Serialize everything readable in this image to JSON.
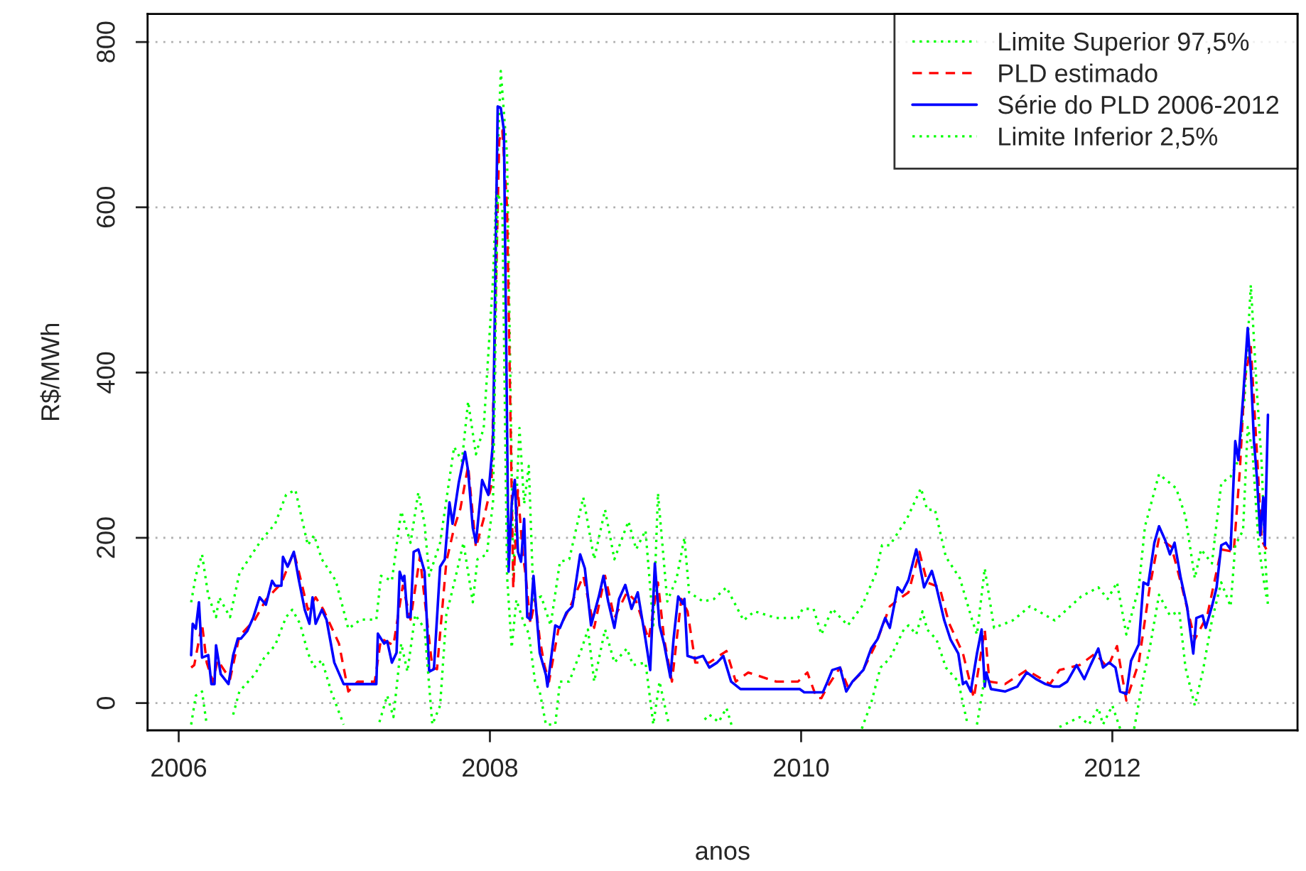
{
  "chart_data": {
    "type": "line",
    "xlabel": "anos",
    "ylabel": "R$/MWh",
    "xlim": [
      2005.8,
      2013.19
    ],
    "ylim": [
      -33,
      834
    ],
    "xticks": [
      2006,
      2008,
      2010,
      2012
    ],
    "yticks": [
      0,
      200,
      400,
      600,
      800
    ],
    "grid": "y",
    "legend": "top right",
    "series": [
      {
        "name": "Limite Superior 97,5%",
        "color": "#00ff00",
        "line_style": "dotted",
        "x": [
          2006.08,
          2006.11,
          2006.15,
          2006.19,
          2006.24,
          2006.26,
          2006.33,
          2006.39,
          2006.53,
          2006.62,
          2006.69,
          2006.75,
          2006.83,
          2006.87,
          2006.92,
          2007.01,
          2007.09,
          2007.17,
          2007.27,
          2007.3,
          2007.37,
          2007.43,
          2007.49,
          2007.54,
          2007.58,
          2007.61,
          2007.68,
          2007.77,
          2007.82,
          2007.86,
          2007.91,
          2007.96,
          2008.02,
          2008.07,
          2008.11,
          2008.15,
          2008.19,
          2008.22,
          2008.25,
          2008.28,
          2008.33,
          2008.39,
          2008.45,
          2008.51,
          2008.6,
          2008.67,
          2008.74,
          2008.8,
          2008.89,
          2008.94,
          2009.0,
          2009.05,
          2009.08,
          2009.14,
          2009.2,
          2009.25,
          2009.28,
          2009.37,
          2009.44,
          2009.52,
          2009.63,
          2009.7,
          2009.84,
          2009.98,
          2010.01,
          2010.08,
          2010.13,
          2010.2,
          2010.3,
          2010.39,
          2010.48,
          2010.52,
          2010.57,
          2010.68,
          2010.77,
          2010.81,
          2010.86,
          2010.93,
          2011.02,
          2011.1,
          2011.13,
          2011.18,
          2011.24,
          2011.36,
          2011.47,
          2011.63,
          2011.73,
          2011.8,
          2011.91,
          2011.97,
          2012.03,
          2012.09,
          2012.17,
          2012.21,
          2012.3,
          2012.41,
          2012.47,
          2012.53,
          2012.57,
          2012.64,
          2012.7,
          2012.76,
          2012.81,
          2012.85,
          2012.89,
          2012.93,
          2012.96,
          2012.98,
          2013.0
        ],
        "values": [
          122,
          154,
          180,
          130,
          104,
          128,
          104,
          157,
          197,
          217,
          252,
          258,
          191,
          203,
          174,
          148,
          90,
          101,
          101,
          154,
          148,
          232,
          194,
          255,
          217,
          154,
          194,
          310,
          293,
          365,
          301,
          333,
          513,
          765,
          664,
          154,
          333,
          241,
          287,
          125,
          129,
          94,
          171,
          174,
          249,
          174,
          234,
          174,
          220,
          186,
          209,
          94,
          254,
          123,
          151,
          200,
          134,
          123,
          126,
          140,
          100,
          111,
          103,
          103,
          114,
          114,
          83,
          114,
          94,
          117,
          157,
          191,
          191,
          223,
          260,
          234,
          234,
          177,
          151,
          100,
          83,
          163,
          91,
          100,
          117,
          100,
          117,
          129,
          140,
          126,
          146,
          83,
          140,
          214,
          277,
          260,
          226,
          151,
          186,
          169,
          266,
          274,
          294,
          369,
          506,
          374,
          289,
          186,
          117
        ]
      },
      {
        "name": "PLD estimado",
        "color": "#ff0000",
        "line_style": "dashed",
        "x": [
          2006.08,
          2006.1,
          2006.15,
          2006.18,
          2006.22,
          2006.25,
          2006.33,
          2006.39,
          2006.49,
          2006.56,
          2006.66,
          2006.74,
          2006.79,
          2006.83,
          2006.88,
          2006.93,
          2007.03,
          2007.09,
          2007.15,
          2007.26,
          2007.3,
          2007.38,
          2007.44,
          2007.49,
          2007.55,
          2007.63,
          2007.66,
          2007.72,
          2007.77,
          2007.81,
          2007.86,
          2007.91,
          2007.96,
          2008.01,
          2008.06,
          2008.08,
          2008.11,
          2008.15,
          2008.18,
          2008.21,
          2008.23,
          2008.26,
          2008.29,
          2008.32,
          2008.35,
          2008.38,
          2008.44,
          2008.51,
          2008.6,
          2008.67,
          2008.74,
          2008.8,
          2008.88,
          2008.94,
          2009.02,
          2009.08,
          2009.12,
          2009.17,
          2009.23,
          2009.27,
          2009.32,
          2009.41,
          2009.52,
          2009.58,
          2009.66,
          2009.84,
          2009.98,
          2010.04,
          2010.1,
          2010.13,
          2010.17,
          2010.25,
          2010.3,
          2010.39,
          2010.48,
          2010.57,
          2010.63,
          2010.69,
          2010.76,
          2010.81,
          2010.89,
          2010.95,
          2011.04,
          2011.11,
          2011.18,
          2011.21,
          2011.31,
          2011.45,
          2011.6,
          2011.66,
          2011.79,
          2011.89,
          2011.97,
          2012.03,
          2012.09,
          2012.17,
          2012.24,
          2012.3,
          2012.38,
          2012.44,
          2012.53,
          2012.61,
          2012.7,
          2012.78,
          2012.82,
          2012.85,
          2012.89,
          2012.93,
          2012.96,
          2012.99
        ],
        "values": [
          43,
          46,
          96,
          49,
          26,
          52,
          29,
          81,
          101,
          125,
          145,
          183,
          145,
          113,
          128,
          113,
          72,
          14,
          26,
          26,
          78,
          70,
          142,
          101,
          177,
          43,
          41,
          171,
          212,
          235,
          287,
          188,
          223,
          264,
          681,
          693,
          600,
          139,
          258,
          183,
          154,
          96,
          125,
          78,
          46,
          26,
          89,
          114,
          154,
          91,
          154,
          103,
          134,
          123,
          77,
          146,
          77,
          26,
          126,
          111,
          49,
          49,
          63,
          26,
          37,
          26,
          26,
          37,
          6,
          6,
          20,
          43,
          20,
          37,
          71,
          117,
          126,
          134,
          183,
          146,
          140,
          97,
          60,
          6,
          89,
          26,
          23,
          40,
          23,
          40,
          46,
          60,
          43,
          69,
          3,
          49,
          140,
          200,
          189,
          146,
          77,
          106,
          186,
          183,
          283,
          391,
          431,
          300,
          197,
          186
        ]
      },
      {
        "name": "Série do PLD 2006-2012",
        "color": "#0000ff",
        "line_style": "solid",
        "x": [
          2006.08,
          2006.09,
          2006.11,
          2006.13,
          2006.15,
          2006.19,
          2006.21,
          2006.23,
          2006.24,
          2006.27,
          2006.32,
          2006.35,
          2006.38,
          2006.4,
          2006.44,
          2006.48,
          2006.52,
          2006.56,
          2006.6,
          2006.62,
          2006.66,
          2006.67,
          2006.7,
          2006.74,
          2006.77,
          2006.81,
          2006.84,
          2006.86,
          2006.88,
          2006.92,
          2006.95,
          2007.0,
          2007.06,
          2007.27,
          2007.28,
          2007.32,
          2007.34,
          2007.37,
          2007.4,
          2007.42,
          2007.44,
          2007.45,
          2007.47,
          2007.49,
          2007.51,
          2007.54,
          2007.58,
          2007.61,
          2007.64,
          2007.68,
          2007.71,
          2007.74,
          2007.76,
          2007.8,
          2007.84,
          2007.86,
          2007.89,
          2007.91,
          2007.95,
          2007.99,
          2008.02,
          2008.05,
          2008.07,
          2008.09,
          2008.12,
          2008.14,
          2008.16,
          2008.18,
          2008.2,
          2008.22,
          2008.24,
          2008.26,
          2008.28,
          2008.32,
          2008.36,
          2008.37,
          2008.42,
          2008.45,
          2008.49,
          2008.53,
          2008.58,
          2008.61,
          2008.65,
          2008.7,
          2008.73,
          2008.76,
          2008.8,
          2008.83,
          2008.87,
          2008.91,
          2008.95,
          2009.0,
          2009.03,
          2009.06,
          2009.09,
          2009.12,
          2009.16,
          2009.18,
          2009.21,
          2009.24,
          2009.25,
          2009.27,
          2009.32,
          2009.37,
          2009.41,
          2009.46,
          2009.5,
          2009.55,
          2009.61,
          2009.99,
          2010.02,
          2010.14,
          2010.17,
          2010.2,
          2010.25,
          2010.29,
          2010.33,
          2010.4,
          2010.45,
          2010.49,
          2010.54,
          2010.57,
          2010.62,
          2010.65,
          2010.69,
          2010.74,
          2010.76,
          2010.79,
          2010.84,
          2010.87,
          2010.92,
          2010.96,
          2011.01,
          2011.04,
          2011.06,
          2011.09,
          2011.13,
          2011.16,
          2011.18,
          2011.19,
          2011.22,
          2011.31,
          2011.39,
          2011.45,
          2011.51,
          2011.57,
          2011.62,
          2011.66,
          2011.71,
          2011.77,
          2011.82,
          2011.86,
          2011.91,
          2011.94,
          2011.98,
          2012.02,
          2012.05,
          2012.09,
          2012.12,
          2012.17,
          2012.2,
          2012.23,
          2012.27,
          2012.3,
          2012.34,
          2012.37,
          2012.4,
          2012.44,
          2012.48,
          2012.52,
          2012.54,
          2012.58,
          2012.6,
          2012.64,
          2012.67,
          2012.7,
          2012.73,
          2012.76,
          2012.79,
          2012.81,
          2012.84,
          2012.87,
          2012.89,
          2012.91,
          2012.93,
          2012.95,
          2012.97,
          2012.98,
          2013.0
        ],
        "values": [
          58,
          96,
          90,
          122,
          55,
          58,
          23,
          23,
          70,
          35,
          23,
          58,
          78,
          78,
          87,
          104,
          128,
          119,
          148,
          142,
          142,
          177,
          165,
          183,
          151,
          113,
          96,
          128,
          96,
          113,
          101,
          49,
          23,
          23,
          84,
          72,
          75,
          49,
          61,
          159,
          148,
          154,
          104,
          104,
          183,
          186,
          159,
          38,
          41,
          165,
          174,
          243,
          217,
          267,
          304,
          281,
          212,
          194,
          270,
          252,
          316,
          722,
          720,
          693,
          159,
          241,
          270,
          183,
          171,
          223,
          104,
          101,
          154,
          61,
          34,
          20,
          94,
          91,
          109,
          117,
          180,
          163,
          94,
          129,
          154,
          123,
          91,
          126,
          143,
          114,
          134,
          77,
          40,
          169,
          94,
          71,
          31,
          77,
          129,
          120,
          126,
          57,
          54,
          57,
          43,
          49,
          57,
          26,
          17,
          17,
          13,
          13,
          26,
          40,
          43,
          14,
          26,
          40,
          66,
          77,
          103,
          91,
          140,
          134,
          149,
          186,
          169,
          140,
          160,
          140,
          100,
          77,
          60,
          23,
          26,
          14,
          60,
          89,
          20,
          37,
          17,
          14,
          20,
          37,
          29,
          23,
          20,
          20,
          26,
          46,
          29,
          46,
          66,
          43,
          49,
          43,
          14,
          11,
          51,
          71,
          146,
          143,
          194,
          214,
          197,
          180,
          194,
          151,
          117,
          60,
          103,
          106,
          91,
          117,
          140,
          191,
          194,
          186,
          317,
          294,
          369,
          454,
          403,
          317,
          271,
          203,
          249,
          191,
          349
        ]
      },
      {
        "name": "Limite Inferior 2,5%",
        "color": "#00ff00",
        "line_style": "dotted",
        "x": [
          2006.08,
          2006.11,
          2006.15,
          2006.18,
          2006.22,
          2006.35,
          2006.39,
          2006.49,
          2006.55,
          2006.62,
          2006.69,
          2006.73,
          2006.78,
          2006.83,
          2006.87,
          2006.92,
          2006.98,
          2007.06,
          2007.15,
          2007.29,
          2007.34,
          2007.38,
          2007.43,
          2007.47,
          2007.52,
          2007.58,
          2007.63,
          2007.68,
          2007.72,
          2007.77,
          2007.83,
          2007.89,
          2007.92,
          2007.98,
          2008.02,
          2008.05,
          2008.08,
          2008.11,
          2008.14,
          2008.17,
          2008.22,
          2008.25,
          2008.29,
          2008.32,
          2008.36,
          2008.42,
          2008.45,
          2008.51,
          2008.59,
          2008.63,
          2008.67,
          2008.74,
          2008.8,
          2008.88,
          2008.92,
          2009.0,
          2009.05,
          2009.09,
          2009.15,
          2009.25,
          2009.38,
          2009.41,
          2009.47,
          2009.52,
          2009.56,
          2009.8,
          2009.99,
          2010.1,
          2010.25,
          2010.32,
          2010.39,
          2010.45,
          2010.51,
          2010.57,
          2010.66,
          2010.69,
          2010.74,
          2010.78,
          2010.81,
          2010.87,
          2010.93,
          2011.01,
          2011.07,
          2011.1,
          2011.13,
          2011.18,
          2011.21,
          2011.45,
          2011.55,
          2011.66,
          2011.79,
          2011.85,
          2011.91,
          2011.94,
          2012.0,
          2012.05,
          2012.1,
          2012.14,
          2012.2,
          2012.24,
          2012.3,
          2012.37,
          2012.43,
          2012.47,
          2012.53,
          2012.58,
          2012.64,
          2012.7,
          2012.76,
          2012.79,
          2012.84,
          2012.87,
          2012.9,
          2012.94,
          2012.98,
          2012.99
        ],
        "values": [
          -26,
          9,
          14,
          -26,
          null,
          -14,
          14,
          35,
          55,
          70,
          104,
          113,
          96,
          61,
          43,
          52,
          14,
          -26,
          null,
          -23,
          9,
          -17,
          72,
          38,
          107,
          90,
          -26,
          -3,
          107,
          145,
          194,
          122,
          174,
          180,
          243,
          617,
          600,
          154,
          67,
          125,
          96,
          84,
          26,
          14,
          -26,
          -26,
          26,
          26,
          66,
          89,
          26,
          89,
          49,
          66,
          46,
          49,
          -26,
          26,
          -26,
          null,
          -20,
          -14,
          -23,
          -6,
          -31,
          null,
          null,
          null,
          null,
          null,
          -31,
          0,
          43,
          54,
          89,
          94,
          83,
          111,
          89,
          77,
          43,
          26,
          -26,
          null,
          -26,
          31,
          null,
          null,
          null,
          -29,
          -17,
          -26,
          -6,
          -26,
          -3,
          -31,
          null,
          -31,
          31,
          66,
          131,
          106,
          111,
          43,
          -3,
          37,
          100,
          146,
          117,
          191,
          209,
          334,
          306,
          191,
          140,
          129
        ]
      }
    ]
  }
}
